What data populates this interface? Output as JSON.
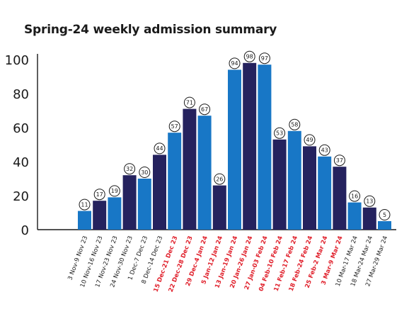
{
  "chart_data": {
    "type": "bar",
    "title": "Spring-24 weekly admission summary",
    "xlabel": "",
    "ylabel": "",
    "ylim": [
      0,
      100
    ],
    "yticks": [
      0,
      20,
      40,
      60,
      80,
      100
    ],
    "grid": false,
    "legend": "none",
    "categories": [
      "3 Nov-9 Nov 23",
      "10 Nov-16 Nov 23",
      "17 Nov-23 Nov 23",
      "24 Nov-30 Nov 23",
      "1 Dec-7 Dec 23",
      "8 Dec-14 Dec 23",
      "15 Dec-21 Dec 23",
      "22 Dec-28 Dec 23",
      "29 Dec-4 Jan 24",
      "5 Jan-12 Jan 24",
      "13 Jan-19 Jan 24",
      "20 Jan-26 Jan 24",
      "27 Jan-03 Feb 24",
      "04 Feb-10 Feb 24",
      "11 Feb-17 Feb 24",
      "18 Feb-24 Feb 24",
      "25 Feb-2 Mar 24",
      "3 Mar-9 Mar 24",
      "10 Mar-17 Mar 24",
      "18 Mar-24 Mar 24",
      "27 Mar-29 Mar 24"
    ],
    "values": [
      11,
      17,
      19,
      32,
      30,
      44,
      57,
      71,
      67,
      26,
      94,
      98,
      97,
      53,
      58,
      49,
      43,
      37,
      16,
      13,
      5
    ],
    "highlighted_labels": [
      6,
      7,
      8,
      9,
      10,
      11,
      12,
      13,
      14,
      15,
      16,
      17
    ],
    "colors": {
      "bar_light": "#1877c6",
      "bar_dark": "#25225e",
      "highlight_label": "#e0202b",
      "label": "#1a1a1a",
      "axis": "#1a1a1a"
    }
  }
}
